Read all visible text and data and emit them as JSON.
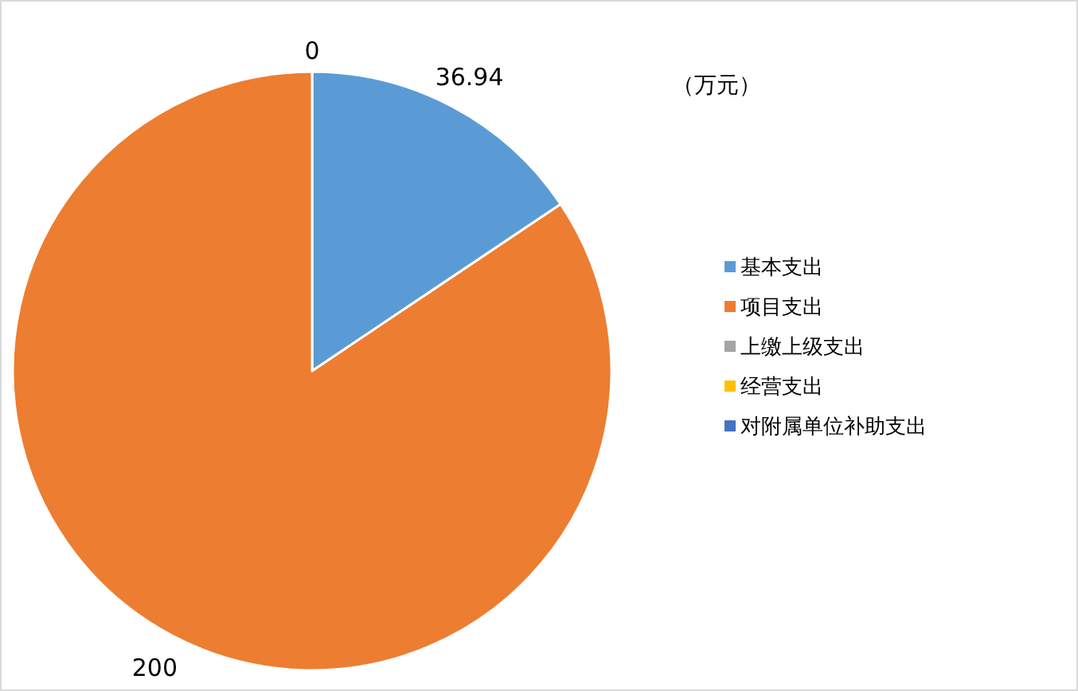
{
  "chart_data": {
    "type": "pie",
    "annotations": [
      "（万元）"
    ],
    "categories": [
      "基本支出",
      "项目支出",
      "上缴上级支出",
      "经营支出",
      "对附属单位补助支出"
    ],
    "values": [
      36.94,
      200,
      0,
      0,
      0
    ],
    "value_labels": [
      "36.94",
      "200",
      "0",
      null,
      null
    ],
    "colors": [
      "#5b9bd5",
      "#ed7d31",
      "#a5a5a5",
      "#ffc000",
      "#4472c4"
    ],
    "legend": "right"
  }
}
